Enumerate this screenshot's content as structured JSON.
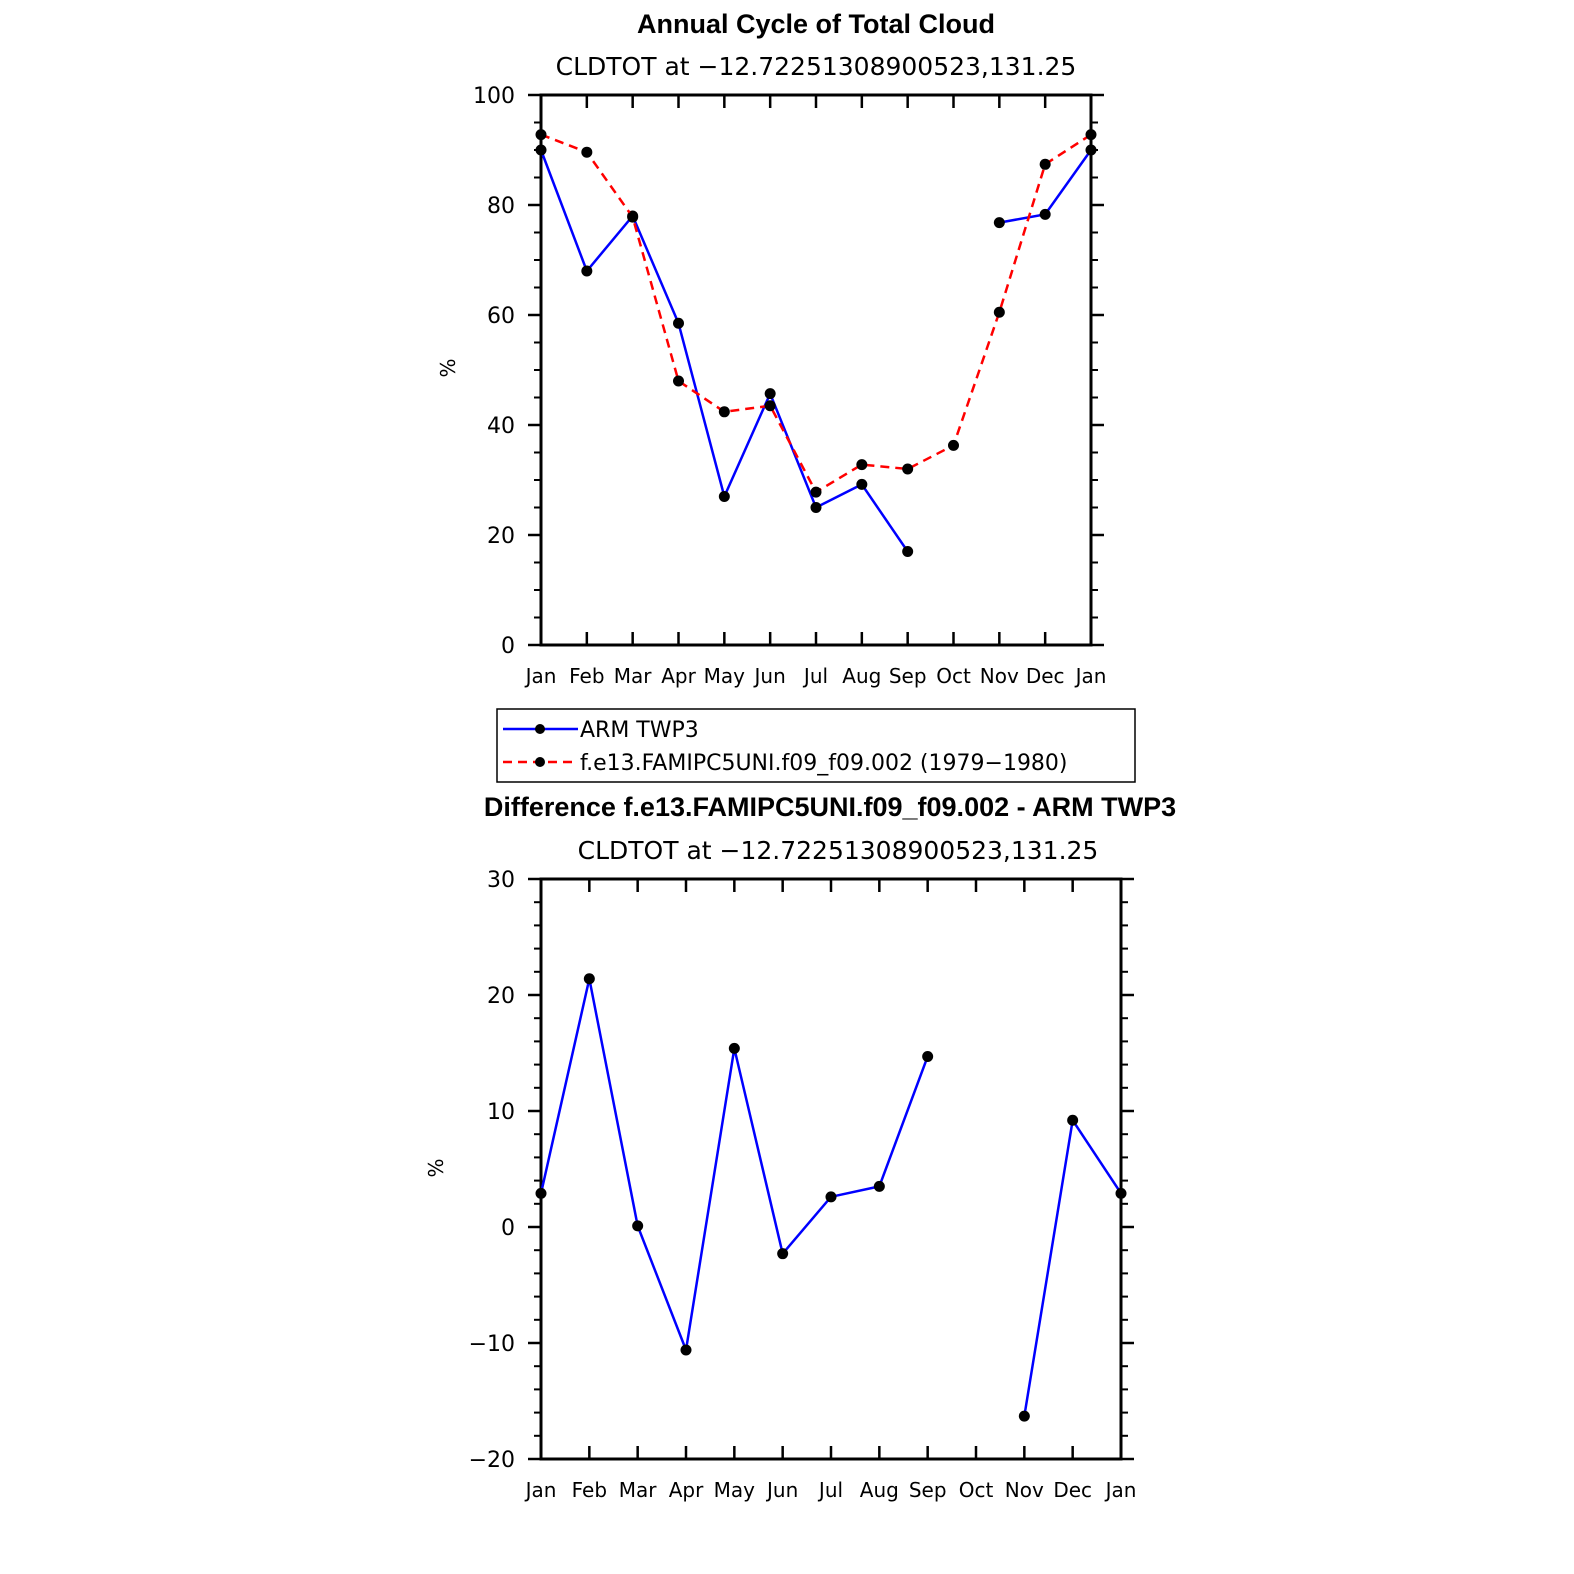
{
  "chart_data": [
    {
      "type": "line",
      "title": "Annual Cycle of Total Cloud",
      "subtitle": "CLDTOT at −12.72251308900523,131.25",
      "xlabel": "",
      "ylabel": "%",
      "categories": [
        "Jan",
        "Feb",
        "Mar",
        "Apr",
        "May",
        "Jun",
        "Jul",
        "Aug",
        "Sep",
        "Oct",
        "Nov",
        "Dec",
        "Jan"
      ],
      "yticks": [
        "0",
        "20",
        "40",
        "60",
        "80",
        "100"
      ],
      "ylim": [
        0,
        100
      ],
      "series": [
        {
          "name": "ARM TWP3",
          "color": "#0000ff",
          "dash": "solid",
          "values": [
            90,
            68,
            78,
            58.5,
            27,
            45.7,
            25,
            29.2,
            17,
            null,
            76.8,
            78.3,
            90
          ]
        },
        {
          "name": "f.e13.FAMIPC5UNI.f09_f09.002 (1979−1980)",
          "color": "#ff0000",
          "dash": "dashed",
          "values": [
            92.8,
            89.6,
            77.8,
            48,
            42.4,
            43.5,
            27.8,
            32.8,
            32,
            36.3,
            60.5,
            87.4,
            92.8
          ]
        }
      ],
      "legend": "bottom"
    },
    {
      "type": "line",
      "title": "Difference f.e13.FAMIPC5UNI.f09_f09.002 - ARM TWP3",
      "subtitle": "CLDTOT at −12.72251308900523,131.25",
      "xlabel": "",
      "ylabel": "%",
      "categories": [
        "Jan",
        "Feb",
        "Mar",
        "Apr",
        "May",
        "Jun",
        "Jul",
        "Aug",
        "Sep",
        "Oct",
        "Nov",
        "Dec",
        "Jan"
      ],
      "yticks": [
        "−20",
        "−10",
        "0",
        "10",
        "20",
        "30"
      ],
      "ylim": [
        -20,
        30
      ],
      "series": [
        {
          "name": "Difference",
          "color": "#0000ff",
          "dash": "solid",
          "values": [
            2.9,
            21.4,
            0.1,
            -10.6,
            15.4,
            -2.3,
            2.6,
            3.5,
            14.7,
            null,
            -16.3,
            9.2,
            2.9
          ]
        }
      ]
    }
  ]
}
